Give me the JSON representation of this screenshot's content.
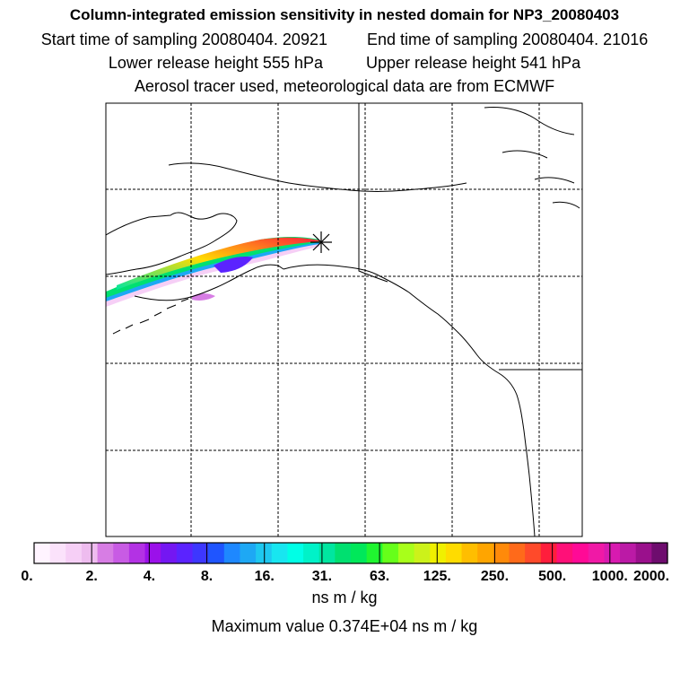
{
  "header": {
    "title": "Column-integrated emission sensitivity in nested domain for NP3_20080403",
    "start_label": "Start time of sampling 20080404. 20921",
    "end_label": "End time of sampling 20080404. 21016",
    "lower_label": "Lower release height  555 hPa",
    "upper_label": "Upper release height  541 hPa",
    "tracer_line": "Aerosol tracer used, meteorological data are from ECMWF"
  },
  "map": {
    "release_marker": "release-point-asterisk-icon",
    "land_color": "#ffffff",
    "coast_color": "#000000",
    "grid_style": "dashed"
  },
  "colorbar": {
    "colors": [
      "#fff4ff",
      "#fbe2fb",
      "#f6cff6",
      "#eebcef",
      "#d77de4",
      "#c85be4",
      "#b332e4",
      "#9b10ea",
      "#7417f2",
      "#5b23ff",
      "#3d37ff",
      "#1f55ff",
      "#1e88ff",
      "#1ea8f4",
      "#1ec8f0",
      "#18e6f0",
      "#00ffe6",
      "#00f2c8",
      "#00e6a0",
      "#00e070",
      "#00e85a",
      "#20f530",
      "#66ff1a",
      "#a8ff1a",
      "#ccf21a",
      "#f0f000",
      "#ffdc00",
      "#ffbe00",
      "#ffa500",
      "#ff8a0a",
      "#ff6a1a",
      "#ff4a2a",
      "#ff1e3c",
      "#ff1078",
      "#ff0a96",
      "#f019a6",
      "#d81ab0",
      "#bb1aa6",
      "#9a108c",
      "#6e0c6e"
    ],
    "tick_labels": [
      "0.",
      "2.",
      "4.",
      "8.",
      "16.",
      "31.",
      "63.",
      "125.",
      "250.",
      "500.",
      "1000.",
      "2000."
    ],
    "units_label": "ns m / kg",
    "max_label": "Maximum value  0.374E+04 ns m / kg"
  }
}
